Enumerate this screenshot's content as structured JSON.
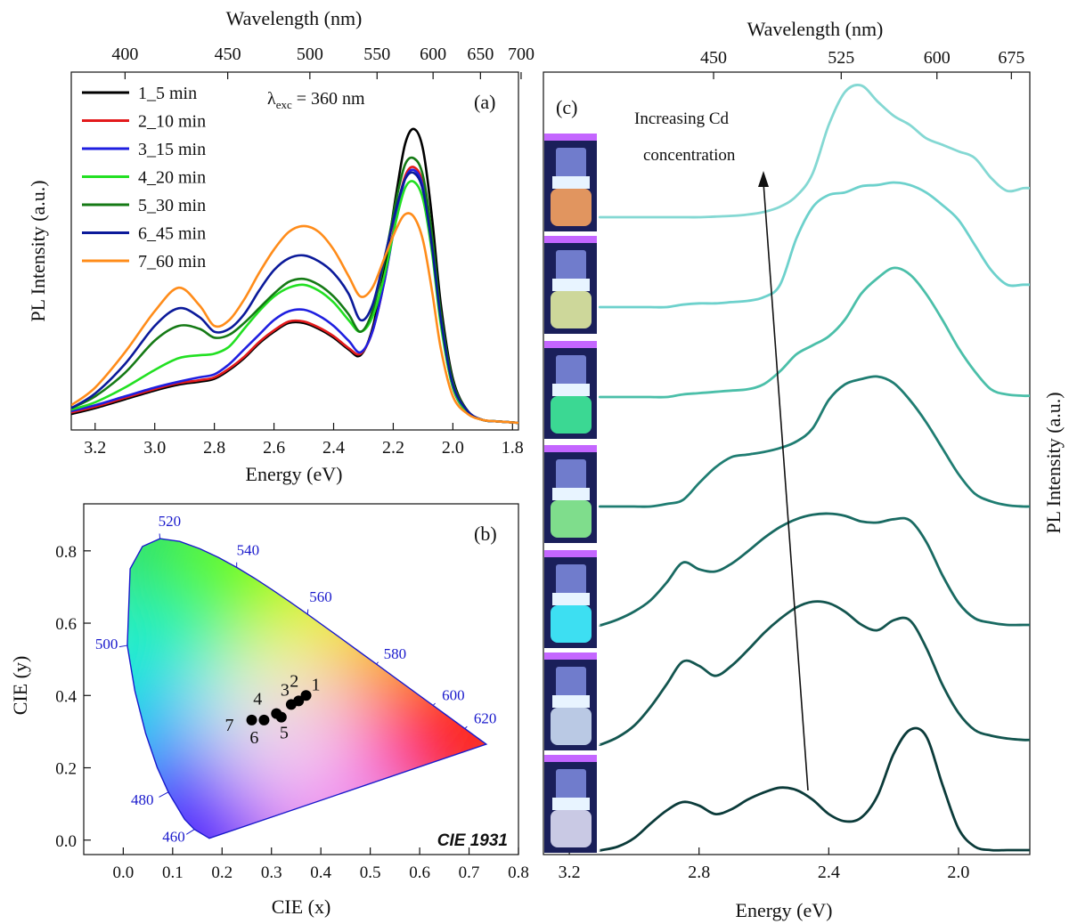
{
  "chart_data": [
    {
      "panel": "(a)",
      "type": "line",
      "annotation": "λexc = 360 nm",
      "annotation_main": "λ",
      "annotation_sub": "exc",
      "annotation_rest": " = 360 nm",
      "xlabel": "Energy (eV)",
      "ylabel": "PL Intensity (a.u.)",
      "top_xlabel": "Wavelength (nm)",
      "xlim": [
        3.28,
        1.78
      ],
      "x_reversed": true,
      "ylim": [
        0,
        1.1
      ],
      "xticks": [
        3.2,
        3.0,
        2.8,
        2.6,
        2.4,
        2.2,
        2.0,
        1.8
      ],
      "xtick_labels": [
        "3.2",
        "3.0",
        "2.8",
        "2.6",
        "2.4",
        "2.2",
        "2.0",
        "1.8"
      ],
      "top_ticks": [
        400,
        450,
        500,
        550,
        600,
        650,
        700
      ],
      "top_tick_labels": [
        "400",
        "450",
        "500",
        "550",
        "600",
        "650",
        "700"
      ],
      "legend_position": "top-left",
      "x": [
        3.28,
        3.2,
        3.1,
        3.0,
        2.92,
        2.85,
        2.8,
        2.75,
        2.7,
        2.65,
        2.6,
        2.55,
        2.5,
        2.45,
        2.4,
        2.35,
        2.31,
        2.27,
        2.23,
        2.19,
        2.16,
        2.13,
        2.1,
        2.07,
        2.04,
        2.0,
        1.95,
        1.9,
        1.85,
        1.78
      ],
      "series": [
        {
          "name": "1_5 min",
          "color": "#000000",
          "values": [
            0.03,
            0.05,
            0.08,
            0.11,
            0.13,
            0.14,
            0.15,
            0.18,
            0.22,
            0.27,
            0.31,
            0.34,
            0.34,
            0.32,
            0.29,
            0.25,
            0.23,
            0.32,
            0.52,
            0.78,
            0.95,
            1.0,
            0.93,
            0.7,
            0.4,
            0.15,
            0.04,
            0.01,
            0.005,
            0.0
          ]
        },
        {
          "name": "2_10 min",
          "color": "#e31a1c",
          "values": [
            0.035,
            0.055,
            0.085,
            0.115,
            0.135,
            0.145,
            0.155,
            0.185,
            0.225,
            0.275,
            0.315,
            0.345,
            0.345,
            0.325,
            0.295,
            0.255,
            0.235,
            0.31,
            0.48,
            0.71,
            0.84,
            0.87,
            0.81,
            0.6,
            0.34,
            0.12,
            0.035,
            0.01,
            0.005,
            0.0
          ]
        },
        {
          "name": "3_15 min",
          "color": "#1f1fe0",
          "values": [
            0.04,
            0.06,
            0.09,
            0.12,
            0.14,
            0.155,
            0.165,
            0.2,
            0.25,
            0.3,
            0.35,
            0.38,
            0.385,
            0.365,
            0.33,
            0.28,
            0.24,
            0.31,
            0.48,
            0.7,
            0.83,
            0.86,
            0.8,
            0.6,
            0.34,
            0.12,
            0.035,
            0.01,
            0.005,
            0.0
          ]
        },
        {
          "name": "4_20 min",
          "color": "#22e022",
          "values": [
            0.045,
            0.07,
            0.12,
            0.18,
            0.22,
            0.23,
            0.235,
            0.26,
            0.32,
            0.38,
            0.43,
            0.46,
            0.47,
            0.45,
            0.41,
            0.35,
            0.31,
            0.36,
            0.5,
            0.69,
            0.8,
            0.82,
            0.76,
            0.58,
            0.33,
            0.12,
            0.035,
            0.01,
            0.005,
            0.0
          ]
        },
        {
          "name": "5_30 min",
          "color": "#157a15",
          "values": [
            0.05,
            0.09,
            0.17,
            0.28,
            0.33,
            0.32,
            0.29,
            0.3,
            0.34,
            0.39,
            0.44,
            0.48,
            0.49,
            0.47,
            0.43,
            0.37,
            0.31,
            0.38,
            0.55,
            0.76,
            0.88,
            0.9,
            0.84,
            0.64,
            0.37,
            0.14,
            0.04,
            0.01,
            0.005,
            0.0
          ]
        },
        {
          "name": "6_45 min",
          "color": "#0b1a9a",
          "values": [
            0.05,
            0.1,
            0.2,
            0.33,
            0.39,
            0.36,
            0.31,
            0.32,
            0.37,
            0.45,
            0.52,
            0.56,
            0.57,
            0.55,
            0.51,
            0.44,
            0.35,
            0.4,
            0.56,
            0.73,
            0.83,
            0.85,
            0.79,
            0.6,
            0.35,
            0.13,
            0.04,
            0.01,
            0.005,
            0.0
          ]
        },
        {
          "name": "7_60 min",
          "color": "#ff8c1a",
          "values": [
            0.06,
            0.12,
            0.24,
            0.38,
            0.46,
            0.4,
            0.33,
            0.35,
            0.42,
            0.51,
            0.59,
            0.65,
            0.67,
            0.65,
            0.59,
            0.5,
            0.43,
            0.46,
            0.56,
            0.66,
            0.71,
            0.7,
            0.62,
            0.45,
            0.25,
            0.09,
            0.03,
            0.01,
            0.005,
            0.0
          ]
        }
      ]
    },
    {
      "panel": "(b)",
      "type": "scatter",
      "xlabel": "CIE (x)",
      "ylabel": "CIE (y)",
      "corner_label": "CIE 1931",
      "xlim": [
        -0.08,
        0.8
      ],
      "ylim": [
        -0.04,
        0.93
      ],
      "xticks": [
        0.0,
        0.1,
        0.2,
        0.3,
        0.4,
        0.5,
        0.6,
        0.7,
        0.8
      ],
      "xtick_labels": [
        "0.0",
        "0.1",
        "0.2",
        "0.3",
        "0.4",
        "0.5",
        "0.6",
        "0.7",
        "0.8"
      ],
      "yticks": [
        0.0,
        0.2,
        0.4,
        0.6,
        0.8
      ],
      "ytick_labels": [
        "0.0",
        "0.2",
        "0.4",
        "0.6",
        "0.8"
      ],
      "locus": [
        [
          0.1741,
          0.005
        ],
        [
          0.144,
          0.0297
        ],
        [
          0.1241,
          0.0578
        ],
        [
          0.0913,
          0.1327
        ],
        [
          0.0687,
          0.2007
        ],
        [
          0.0454,
          0.295
        ],
        [
          0.0235,
          0.4127
        ],
        [
          0.0082,
          0.5384
        ],
        [
          0.0139,
          0.7502
        ],
        [
          0.0389,
          0.812
        ],
        [
          0.0743,
          0.8338
        ],
        [
          0.1142,
          0.8262
        ],
        [
          0.1547,
          0.8059
        ],
        [
          0.1929,
          0.7816
        ],
        [
          0.2296,
          0.7543
        ],
        [
          0.2658,
          0.7243
        ],
        [
          0.3016,
          0.6923
        ],
        [
          0.3373,
          0.6589
        ],
        [
          0.3731,
          0.6245
        ],
        [
          0.4087,
          0.5896
        ],
        [
          0.4441,
          0.5547
        ],
        [
          0.4788,
          0.5202
        ],
        [
          0.5125,
          0.4866
        ],
        [
          0.5448,
          0.4544
        ],
        [
          0.5752,
          0.4242
        ],
        [
          0.6029,
          0.3965
        ],
        [
          0.627,
          0.3725
        ],
        [
          0.6482,
          0.3514
        ],
        [
          0.6658,
          0.334
        ],
        [
          0.6915,
          0.3083
        ],
        [
          0.7347,
          0.2653
        ]
      ],
      "wavelength_labels": [
        {
          "label": "460",
          "x": 0.144,
          "y": 0.0297
        },
        {
          "label": "480",
          "x": 0.0913,
          "y": 0.1327
        },
        {
          "label": "500",
          "x": 0.0082,
          "y": 0.5384
        },
        {
          "label": "520",
          "x": 0.0743,
          "y": 0.8338
        },
        {
          "label": "540",
          "x": 0.2296,
          "y": 0.7543
        },
        {
          "label": "560",
          "x": 0.3731,
          "y": 0.6245
        },
        {
          "label": "580",
          "x": 0.5125,
          "y": 0.4866
        },
        {
          "label": "600",
          "x": 0.627,
          "y": 0.3725
        },
        {
          "label": "620",
          "x": 0.6915,
          "y": 0.3083
        }
      ],
      "points": [
        {
          "label": "1",
          "x": 0.37,
          "y": 0.4
        },
        {
          "label": "2",
          "x": 0.355,
          "y": 0.385
        },
        {
          "label": "3",
          "x": 0.34,
          "y": 0.375
        },
        {
          "label": "4",
          "x": 0.31,
          "y": 0.35
        },
        {
          "label": "5",
          "x": 0.32,
          "y": 0.34
        },
        {
          "label": "6",
          "x": 0.285,
          "y": 0.332
        },
        {
          "label": "7",
          "x": 0.26,
          "y": 0.332
        }
      ]
    },
    {
      "panel": "(c)",
      "type": "line",
      "annotation": "Increasing Cd\nconcentration",
      "annotation_line1": "Increasing Cd",
      "annotation_line2": "concentration",
      "xlabel": "Energy (eV)",
      "ylabel": "PL Intensity (a.u.)",
      "top_xlabel": "Wavelength (nm)",
      "xlim": [
        3.28,
        1.78
      ],
      "x_reversed": true,
      "xticks": [
        3.2,
        2.8,
        2.4,
        2.0
      ],
      "xtick_labels": [
        "3.2",
        "2.8",
        "2.4",
        "2.0"
      ],
      "top_ticks": [
        450,
        525,
        600,
        675
      ],
      "top_tick_labels": [
        "450",
        "525",
        "600",
        "675"
      ],
      "stacked_offset": true,
      "x": [
        3.1,
        3.05,
        3.0,
        2.95,
        2.9,
        2.85,
        2.8,
        2.75,
        2.7,
        2.65,
        2.6,
        2.55,
        2.5,
        2.45,
        2.4,
        2.35,
        2.3,
        2.25,
        2.2,
        2.15,
        2.1,
        2.05,
        2.0,
        1.95,
        1.9,
        1.85,
        1.8,
        1.78
      ],
      "series": [
        {
          "color": "#84d8d3",
          "values": [
            0.0,
            0.0,
            0.0,
            0.0,
            0.0,
            0.0,
            0.0,
            0.005,
            0.01,
            0.02,
            0.04,
            0.08,
            0.16,
            0.33,
            0.7,
            0.95,
            1.0,
            0.88,
            0.77,
            0.7,
            0.6,
            0.55,
            0.5,
            0.45,
            0.3,
            0.2,
            0.22,
            0.22
          ]
        },
        {
          "color": "#6dd1cc",
          "values": [
            0.0,
            0.0,
            0.0,
            0.0,
            0.0,
            0.02,
            0.03,
            0.03,
            0.04,
            0.05,
            0.08,
            0.18,
            0.55,
            0.8,
            0.9,
            0.92,
            0.97,
            0.98,
            1.0,
            0.98,
            0.92,
            0.82,
            0.7,
            0.5,
            0.3,
            0.18,
            0.18,
            0.18
          ]
        },
        {
          "color": "#4bbfa9",
          "values": [
            0.0,
            0.0,
            0.0,
            0.0,
            0.0,
            0.02,
            0.03,
            0.04,
            0.05,
            0.06,
            0.1,
            0.2,
            0.33,
            0.4,
            0.47,
            0.6,
            0.8,
            0.92,
            1.0,
            0.95,
            0.8,
            0.6,
            0.38,
            0.2,
            0.06,
            0.02,
            0.01,
            0.01
          ]
        },
        {
          "color": "#1f7d72",
          "values": [
            0.0,
            0.0,
            0.0,
            0.0,
            0.02,
            0.05,
            0.18,
            0.3,
            0.38,
            0.4,
            0.42,
            0.45,
            0.5,
            0.6,
            0.82,
            0.94,
            0.98,
            1.0,
            0.95,
            0.82,
            0.65,
            0.45,
            0.25,
            0.1,
            0.04,
            0.01,
            0.0,
            0.0
          ]
        },
        {
          "color": "#196a62",
          "values": [
            0.0,
            0.05,
            0.12,
            0.22,
            0.38,
            0.56,
            0.5,
            0.48,
            0.55,
            0.66,
            0.78,
            0.88,
            0.95,
            0.99,
            1.0,
            0.98,
            0.93,
            0.92,
            0.95,
            0.94,
            0.75,
            0.45,
            0.2,
            0.06,
            0.02,
            0.0,
            0.0,
            0.0
          ]
        },
        {
          "color": "#13554f",
          "values": [
            0.0,
            0.05,
            0.13,
            0.26,
            0.42,
            0.58,
            0.55,
            0.48,
            0.55,
            0.66,
            0.78,
            0.88,
            0.96,
            1.0,
            0.99,
            0.93,
            0.84,
            0.8,
            0.87,
            0.87,
            0.68,
            0.42,
            0.22,
            0.1,
            0.06,
            0.04,
            0.03,
            0.03
          ]
        },
        {
          "color": "#0b3b3a",
          "values": [
            0.0,
            0.03,
            0.1,
            0.22,
            0.33,
            0.4,
            0.37,
            0.3,
            0.34,
            0.42,
            0.48,
            0.52,
            0.5,
            0.42,
            0.3,
            0.24,
            0.27,
            0.45,
            0.8,
            1.0,
            0.95,
            0.55,
            0.18,
            0.03,
            0.0,
            0.0,
            0.0,
            0.0
          ]
        }
      ]
    }
  ]
}
